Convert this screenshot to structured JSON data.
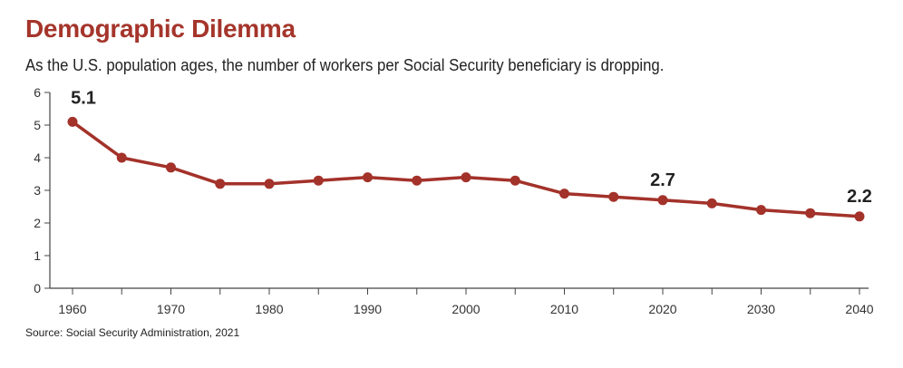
{
  "chart_data": {
    "type": "line",
    "title": "Demographic Dilemma",
    "subtitle": "As the U.S. population ages, the number of workers per Social Security beneficiary is dropping.",
    "source": "Source: Social Security Administration,  2021",
    "x": [
      1960,
      1965,
      1970,
      1975,
      1980,
      1985,
      1990,
      1995,
      2000,
      2005,
      2010,
      2015,
      2020,
      2025,
      2030,
      2035,
      2040
    ],
    "values": [
      5.1,
      4.0,
      3.7,
      3.2,
      3.2,
      3.3,
      3.4,
      3.3,
      3.4,
      3.3,
      2.9,
      2.8,
      2.7,
      2.6,
      2.4,
      2.3,
      2.2
    ],
    "xticks": [
      "1960",
      "1970",
      "1980",
      "1990",
      "2000",
      "2010",
      "2020",
      "2030",
      "2040"
    ],
    "yticks": [
      "0",
      "1",
      "2",
      "3",
      "4",
      "5",
      "6"
    ],
    "ylim": [
      0,
      6
    ],
    "xlim": [
      1960,
      2040
    ],
    "annotations": [
      {
        "x": 1960,
        "label": "5.1"
      },
      {
        "x": 2020,
        "label": "2.7"
      },
      {
        "x": 2040,
        "label": "2.2"
      }
    ],
    "line_color": "#a3322a",
    "grid": false
  }
}
